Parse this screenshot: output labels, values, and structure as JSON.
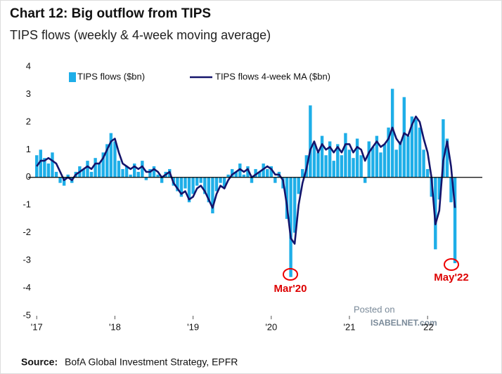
{
  "chart_data": {
    "type": "bar",
    "title": "Chart 12: Big outflow from TIPS",
    "subtitle": "TIPS flows (weekly & 4-week moving average)",
    "annotations": [
      "Mar'20",
      "May'22"
    ],
    "watermark": [
      "Posted on",
      "ISABELNET.com"
    ],
    "source_label": "Source:",
    "source": "BofA Global Investment Strategy, EPFR",
    "legend": "top-left",
    "xlim": [
      2016.89,
      2022.7
    ],
    "xticks": [
      {
        "value": 2017,
        "label": "'17"
      },
      {
        "value": 2018,
        "label": "'18"
      },
      {
        "value": 2019,
        "label": "'19"
      },
      {
        "value": 2020,
        "label": "'20"
      },
      {
        "value": 2021,
        "label": "'21"
      },
      {
        "value": 2022,
        "label": "'22"
      }
    ],
    "ylim": [
      -5,
      4
    ],
    "yticks": [
      4,
      3,
      2,
      1,
      0,
      -1,
      -2,
      -3,
      -4,
      -5
    ],
    "grid": false,
    "x": [
      2017,
      2017.05,
      2017.1,
      2017.15,
      2017.2,
      2017.25,
      2017.3,
      2017.35,
      2017.4,
      2017.45,
      2017.5,
      2017.55,
      2017.6,
      2017.65,
      2017.7,
      2017.75,
      2017.8,
      2017.85,
      2017.9,
      2017.95,
      2018,
      2018.05,
      2018.1,
      2018.15,
      2018.2,
      2018.25,
      2018.3,
      2018.35,
      2018.4,
      2018.45,
      2018.5,
      2018.55,
      2018.6,
      2018.65,
      2018.7,
      2018.75,
      2018.8,
      2018.85,
      2018.9,
      2018.95,
      2019,
      2019.05,
      2019.1,
      2019.15,
      2019.2,
      2019.25,
      2019.3,
      2019.35,
      2019.4,
      2019.45,
      2019.5,
      2019.55,
      2019.6,
      2019.65,
      2019.7,
      2019.75,
      2019.8,
      2019.85,
      2019.9,
      2019.95,
      2020,
      2020.05,
      2020.1,
      2020.15,
      2020.2,
      2020.25,
      2020.3,
      2020.35,
      2020.4,
      2020.45,
      2020.5,
      2020.55,
      2020.6,
      2020.65,
      2020.7,
      2020.75,
      2020.8,
      2020.85,
      2020.9,
      2020.95,
      2021,
      2021.05,
      2021.1,
      2021.15,
      2021.2,
      2021.25,
      2021.3,
      2021.35,
      2021.4,
      2021.45,
      2021.5,
      2021.55,
      2021.6,
      2021.65,
      2021.7,
      2021.75,
      2021.8,
      2021.85,
      2021.9,
      2021.95,
      2022,
      2022.05,
      2022.1,
      2022.15,
      2022.2,
      2022.25,
      2022.3,
      2022.35
    ],
    "series": [
      {
        "name": "TIPS flows ($bn)",
        "type": "bar",
        "color": "#1eaee8",
        "values": [
          0.8,
          1.0,
          0.7,
          0.5,
          0.9,
          0.2,
          -0.2,
          -0.3,
          0.1,
          -0.2,
          0.2,
          0.4,
          0.3,
          0.6,
          0.2,
          0.7,
          0.5,
          0.9,
          1.2,
          1.6,
          1.3,
          0.6,
          0.3,
          0.4,
          0.1,
          0.5,
          0.2,
          0.6,
          -0.1,
          0.3,
          0.4,
          0.1,
          -0.2,
          0.2,
          0.3,
          -0.3,
          -0.5,
          -0.7,
          -0.4,
          -0.9,
          -0.6,
          -0.3,
          -0.2,
          -0.6,
          -0.9,
          -1.3,
          -0.5,
          -0.2,
          -0.4,
          0.1,
          0.3,
          0.2,
          0.5,
          0.1,
          0.4,
          -0.2,
          0.3,
          0.2,
          0.5,
          0.3,
          0.4,
          -0.2,
          0.2,
          -0.4,
          -1.5,
          -3.6,
          -2.0,
          -0.6,
          0.3,
          0.8,
          2.6,
          1.2,
          0.9,
          1.5,
          0.8,
          1.3,
          0.6,
          1.2,
          0.8,
          1.6,
          1.0,
          0.7,
          1.4,
          0.8,
          -0.2,
          1.3,
          1.1,
          1.5,
          0.9,
          1.2,
          1.8,
          3.2,
          1.0,
          1.3,
          2.9,
          1.5,
          2.2,
          2.1,
          1.8,
          1.0,
          0.3,
          -0.7,
          -2.6,
          -0.8,
          2.1,
          1.4,
          -0.9,
          -3.1
        ]
      },
      {
        "name": "TIPS flows 4-week MA ($bn)",
        "type": "line",
        "color": "#14146b",
        "values": [
          0.4,
          0.6,
          0.6,
          0.7,
          0.6,
          0.5,
          0.2,
          -0.1,
          0,
          -0.1,
          0.1,
          0.2,
          0.3,
          0.4,
          0.3,
          0.5,
          0.5,
          0.7,
          1.0,
          1.3,
          1.4,
          0.9,
          0.5,
          0.4,
          0.3,
          0.4,
          0.3,
          0.4,
          0.2,
          0.2,
          0.3,
          0.2,
          0,
          0.1,
          0.2,
          -0.2,
          -0.4,
          -0.6,
          -0.5,
          -0.8,
          -0.7,
          -0.4,
          -0.3,
          -0.5,
          -0.8,
          -1.1,
          -0.6,
          -0.3,
          -0.4,
          -0.1,
          0.1,
          0.2,
          0.3,
          0.2,
          0.3,
          0,
          0.1,
          0.2,
          0.3,
          0.4,
          0.3,
          0.1,
          0.1,
          -0.1,
          -1.0,
          -2.2,
          -2.4,
          -1.0,
          -0.2,
          0.3,
          1.0,
          1.3,
          0.9,
          1.2,
          1.0,
          1.1,
          0.9,
          1.1,
          0.9,
          1.2,
          1.2,
          0.9,
          1.1,
          1.0,
          0.6,
          0.9,
          1.1,
          1.3,
          1.1,
          1.2,
          1.4,
          1.8,
          1.4,
          1.2,
          1.6,
          1.5,
          1.9,
          2.2,
          2.0,
          1.4,
          0.9,
          0,
          -1.7,
          -1.2,
          0.6,
          1.3,
          0.4,
          -1.1
        ]
      }
    ]
  }
}
